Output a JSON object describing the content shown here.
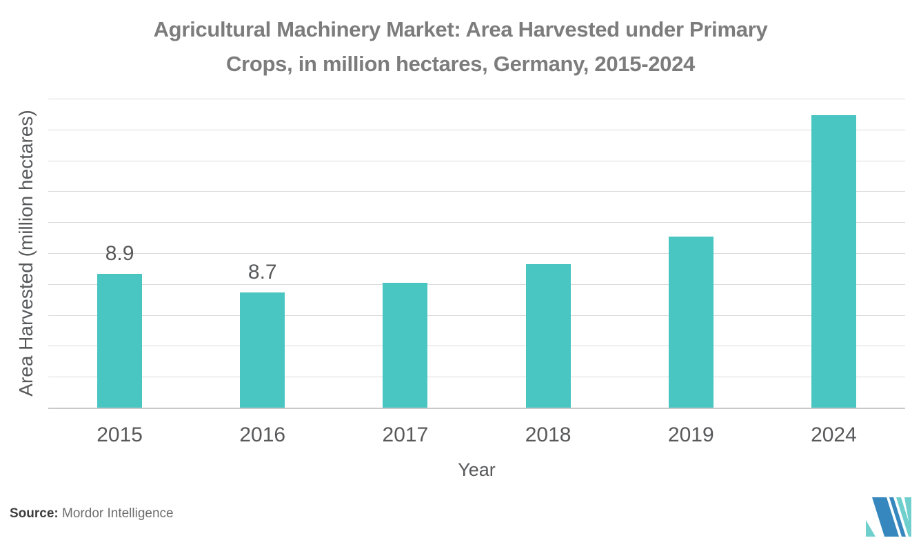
{
  "title": {
    "line1": "Agricultural Machinery Market: Area Harvested under Primary",
    "line2": "Crops, in million hectares, Germany, 2015-2024"
  },
  "chart_data": {
    "type": "bar",
    "title": "Agricultural Machinery Market: Area Harvested under Primary Crops, in million hectares, Germany, 2015-2024",
    "categories": [
      "2015",
      "2016",
      "2017",
      "2018",
      "2019",
      "2024"
    ],
    "values": [
      8.9,
      8.7,
      8.8,
      9.0,
      9.3,
      10.6
    ],
    "data_labels": [
      "8.9",
      "8.7",
      "",
      "",
      "",
      ""
    ],
    "xlabel": "Year",
    "ylabel": "Area Harvested (million hectares)",
    "ylim": [
      7.46,
      10.78
    ],
    "gridlines": 10,
    "grid": "horizontal",
    "legend": "none",
    "y_tick_labels": "none",
    "bar_color": "#49c5c2"
  },
  "source": {
    "label": "Source:",
    "value": "Mordor Intelligence"
  },
  "logo": {
    "name": "mordor-intelligence-logo",
    "colors": {
      "blue": "#3587be",
      "teal": "#6fcfcd"
    }
  },
  "colors": {
    "background": "#ffffff",
    "bar": "#49c5c2",
    "title_text": "#7c7c7c",
    "axis_text": "#58595b",
    "gridline": "#dbdbdb",
    "axis_line": "#c9c9c9",
    "source_text": "#6e6e6e"
  }
}
